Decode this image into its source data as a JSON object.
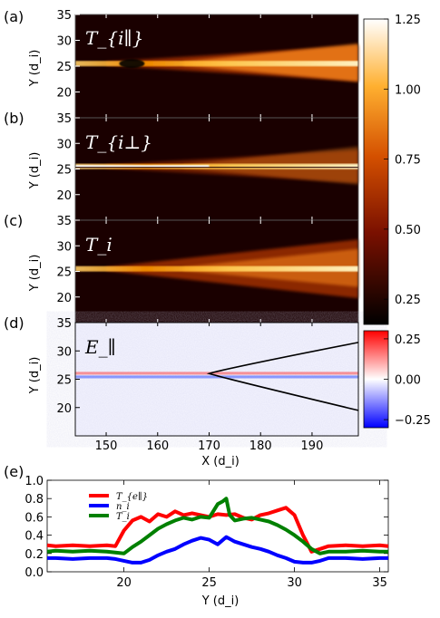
{
  "chart_data": [
    {
      "type": "heatmap",
      "panel_label": "(a)",
      "plot_label": "T_{i∥}",
      "ylabel": "Y (d_i)",
      "xlim": [
        144,
        199
      ],
      "ylim": [
        15,
        35
      ],
      "yticks": [
        20,
        25,
        30,
        35
      ],
      "colormap": "hot",
      "clim": [
        0.16,
        1.25
      ]
    },
    {
      "type": "heatmap",
      "panel_label": "(b)",
      "plot_label": "T_{i⊥}",
      "ylabel": "Y (d_i)",
      "xlim": [
        144,
        199
      ],
      "ylim": [
        15,
        35
      ],
      "yticks": [
        20,
        25,
        30,
        35
      ],
      "colormap": "hot",
      "clim": [
        0.16,
        1.25
      ]
    },
    {
      "type": "heatmap",
      "panel_label": "(c)",
      "plot_label": "T_i",
      "ylabel": "Y (d_i)",
      "xlim": [
        144,
        199
      ],
      "ylim": [
        15,
        35
      ],
      "yticks": [
        20,
        25,
        30,
        35
      ],
      "colormap": "hot",
      "clim": [
        0.16,
        1.25
      ]
    },
    {
      "type": "heatmap",
      "panel_label": "(d)",
      "plot_label": "E_∥",
      "ylabel": "Y (d_i)",
      "xlabel": "X (d_i)",
      "xlim": [
        144,
        199
      ],
      "ylim": [
        15,
        35
      ],
      "xticks": [
        150,
        160,
        170,
        180,
        190
      ],
      "yticks": [
        20,
        25,
        30,
        35
      ],
      "colormap": "bwr",
      "clim": [
        -0.3,
        0.3
      ],
      "separatrix_vertex": [
        170,
        26
      ]
    },
    {
      "type": "line",
      "panel_label": "(e)",
      "xlabel": "Y (d_i)",
      "xlim": [
        15.5,
        35.5
      ],
      "ylim": [
        0,
        1.0
      ],
      "xticks": [
        20,
        25,
        30,
        35
      ],
      "yticks": [
        0.0,
        0.2,
        0.4,
        0.6,
        0.8,
        1.0
      ],
      "legend_position": "upper-left",
      "series": [
        {
          "name": "T_{e∥}",
          "color": "#ff0000",
          "x": [
            15.5,
            16,
            17,
            18,
            19,
            19.5,
            20,
            20.5,
            21,
            21.5,
            22,
            22.5,
            23,
            23.5,
            24,
            24.5,
            25,
            25.5,
            26,
            26.5,
            27,
            27.5,
            28,
            28.5,
            29,
            29.5,
            30,
            30.5,
            31,
            31.5,
            32,
            33,
            34,
            35,
            35.5
          ],
          "values": [
            0.29,
            0.28,
            0.29,
            0.28,
            0.29,
            0.28,
            0.45,
            0.56,
            0.6,
            0.55,
            0.63,
            0.6,
            0.66,
            0.62,
            0.64,
            0.62,
            0.6,
            0.63,
            0.62,
            0.63,
            0.59,
            0.57,
            0.62,
            0.64,
            0.67,
            0.7,
            0.62,
            0.4,
            0.22,
            0.25,
            0.28,
            0.29,
            0.28,
            0.29,
            0.28
          ]
        },
        {
          "name": "n_i",
          "color": "#0000ff",
          "x": [
            15.5,
            16,
            17,
            18,
            19,
            19.5,
            20,
            20.5,
            21,
            21.5,
            22,
            22.5,
            23,
            23.5,
            24,
            24.5,
            25,
            25.5,
            26,
            26.5,
            27,
            27.5,
            28,
            28.5,
            29,
            29.5,
            30,
            30.5,
            31,
            31.5,
            32,
            33,
            34,
            35,
            35.5
          ],
          "values": [
            0.15,
            0.15,
            0.14,
            0.15,
            0.15,
            0.14,
            0.12,
            0.1,
            0.1,
            0.13,
            0.18,
            0.22,
            0.25,
            0.3,
            0.34,
            0.37,
            0.35,
            0.3,
            0.38,
            0.33,
            0.3,
            0.27,
            0.25,
            0.22,
            0.18,
            0.15,
            0.11,
            0.1,
            0.1,
            0.12,
            0.15,
            0.15,
            0.14,
            0.15,
            0.15
          ]
        },
        {
          "name": "T_i",
          "color": "#008000",
          "x": [
            15.5,
            16,
            17,
            18,
            19,
            19.5,
            20,
            20.5,
            21,
            21.5,
            22,
            22.5,
            23,
            23.5,
            24,
            24.5,
            25,
            25.5,
            25.8,
            26,
            26.2,
            26.5,
            27,
            27.5,
            28,
            28.5,
            29,
            29.5,
            30,
            30.5,
            31,
            31.5,
            32,
            33,
            34,
            35,
            35.5
          ],
          "values": [
            0.22,
            0.23,
            0.22,
            0.23,
            0.22,
            0.21,
            0.2,
            0.27,
            0.33,
            0.4,
            0.47,
            0.52,
            0.56,
            0.59,
            0.57,
            0.6,
            0.59,
            0.74,
            0.77,
            0.8,
            0.62,
            0.56,
            0.58,
            0.59,
            0.57,
            0.55,
            0.51,
            0.46,
            0.4,
            0.33,
            0.25,
            0.2,
            0.22,
            0.22,
            0.23,
            0.22,
            0.22
          ]
        }
      ]
    }
  ],
  "colorbars": [
    {
      "colormap": "hot",
      "ticks": [
        0.25,
        0.5,
        0.75,
        1.0,
        1.25
      ],
      "tick_labels": [
        "0.25",
        "0.50",
        "0.75",
        "1.00",
        "1.25"
      ]
    },
    {
      "colormap": "bwr",
      "ticks": [
        -0.25,
        0.0,
        0.25
      ],
      "tick_labels": [
        "−0.25",
        "0.00",
        "0.25"
      ]
    }
  ]
}
